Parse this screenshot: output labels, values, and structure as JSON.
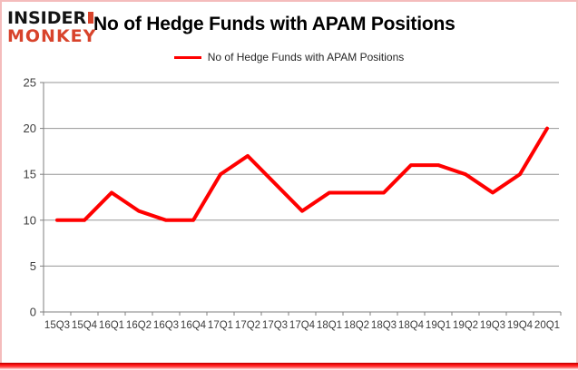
{
  "logo": {
    "line1": "INSIDER",
    "line2": "MONKEY"
  },
  "header": {
    "title": "No of Hedge Funds with APAM Positions"
  },
  "legend": {
    "label": "No of Hedge Funds with APAM Positions"
  },
  "colors": {
    "line": "#ff0000",
    "logo_red": "#d8432b",
    "grid": "#969696",
    "axis": "#7f7f7f",
    "tick_text": "#3d3d3d",
    "border_pink": "#f4bcbc",
    "border_bottom_red": "#e00000"
  },
  "chart_data": {
    "type": "line",
    "title": "No of Hedge Funds with APAM Positions",
    "xlabel": "",
    "ylabel": "",
    "categories": [
      "15Q3",
      "15Q4",
      "16Q1",
      "16Q2",
      "16Q3",
      "16Q4",
      "17Q1",
      "17Q2",
      "17Q3",
      "17Q4",
      "18Q1",
      "18Q2",
      "18Q3",
      "18Q4",
      "19Q1",
      "19Q2",
      "19Q3",
      "19Q4",
      "20Q1"
    ],
    "series": [
      {
        "name": "No of Hedge Funds with APAM Positions",
        "color": "#ff0000",
        "values": [
          10,
          10,
          13,
          11,
          10,
          10,
          15,
          17,
          14,
          11,
          13,
          13,
          13,
          16,
          16,
          15,
          13,
          15,
          20
        ]
      }
    ],
    "ylim": [
      0,
      25
    ],
    "yticks": [
      0,
      5,
      10,
      15,
      20,
      25
    ],
    "grid": true,
    "legend_position": "top-center"
  }
}
